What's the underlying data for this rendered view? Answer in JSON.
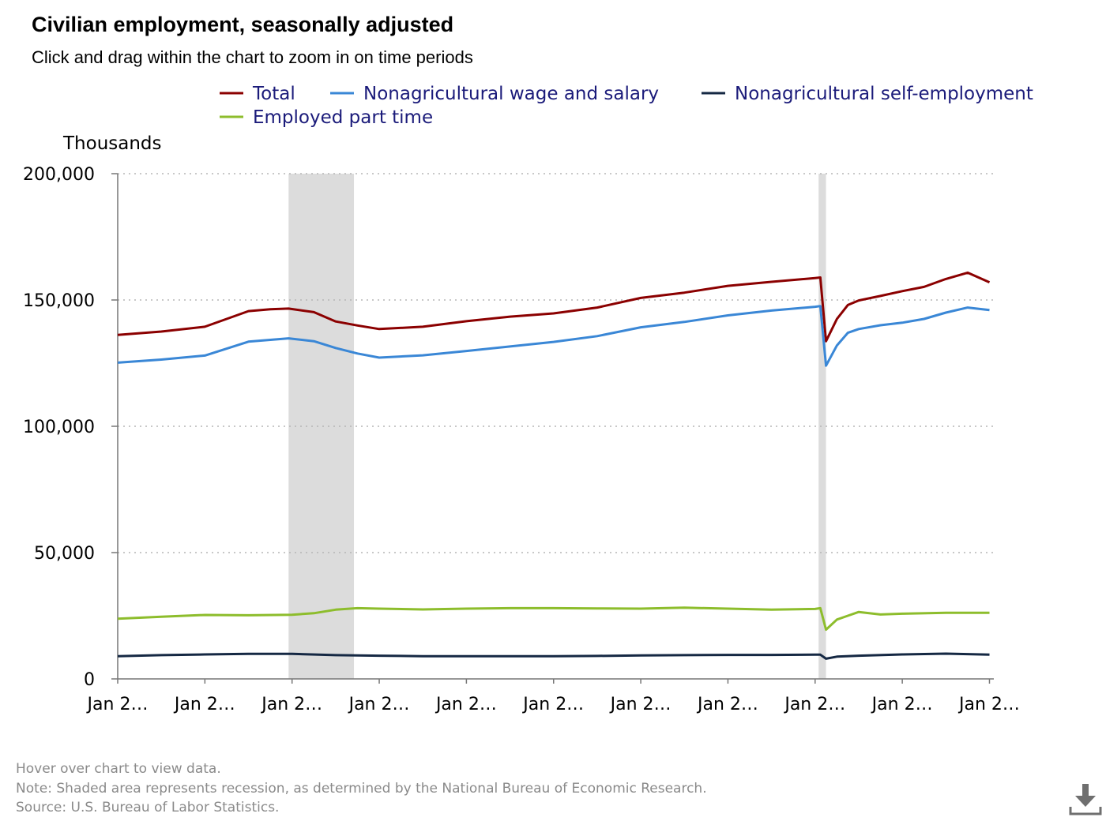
{
  "title": "Civilian employment, seasonally adjusted",
  "subtitle": "Click and drag within the chart to zoom in on time periods",
  "footer": {
    "hover_hint": "Hover over chart to view data.",
    "note": "Note: Shaded area represents recession, as determined by the National Bureau of Economic Research.",
    "source": "Source: U.S. Bureau of Labor Statistics."
  },
  "download_icon": "download-icon",
  "chart_data": {
    "type": "line",
    "ylabel": "Thousands",
    "ylim": [
      0,
      200000
    ],
    "yticks": [
      0,
      50000,
      100000,
      150000,
      200000
    ],
    "ytick_labels": [
      "0",
      "50,000",
      "100,000",
      "150,000",
      "200,000"
    ],
    "xlim": [
      2004.0,
      2024.1
    ],
    "xticks": [
      2004,
      2006,
      2008,
      2010,
      2012,
      2014,
      2016,
      2018,
      2020,
      2022,
      2024
    ],
    "xtick_labels": [
      "Jan 2…",
      "Jan 2…",
      "Jan 2…",
      "Jan 2…",
      "Jan 2…",
      "Jan 2…",
      "Jan 2…",
      "Jan 2…",
      "Jan 2…",
      "Jan 2…",
      "Jan 2…"
    ],
    "grid": "horizontal dotted",
    "legend_position": "top",
    "recessions": [
      {
        "start": 2007.92,
        "end": 2009.42
      },
      {
        "start": 2020.08,
        "end": 2020.25
      }
    ],
    "series": [
      {
        "name": "Total",
        "color": "#8b0000",
        "points": [
          [
            2004.0,
            136200
          ],
          [
            2005.0,
            137500
          ],
          [
            2006.0,
            139400
          ],
          [
            2007.0,
            145600
          ],
          [
            2007.5,
            146300
          ],
          [
            2007.92,
            146600
          ],
          [
            2008.5,
            145200
          ],
          [
            2009.0,
            141500
          ],
          [
            2009.5,
            139900
          ],
          [
            2010.0,
            138500
          ],
          [
            2011.0,
            139400
          ],
          [
            2012.0,
            141600
          ],
          [
            2013.0,
            143400
          ],
          [
            2014.0,
            144700
          ],
          [
            2015.0,
            147000
          ],
          [
            2016.0,
            150800
          ],
          [
            2017.0,
            152900
          ],
          [
            2018.0,
            155600
          ],
          [
            2019.0,
            157200
          ],
          [
            2020.0,
            158700
          ],
          [
            2020.12,
            158900
          ],
          [
            2020.25,
            133700
          ],
          [
            2020.5,
            142500
          ],
          [
            2020.75,
            148000
          ],
          [
            2021.0,
            149800
          ],
          [
            2021.5,
            151600
          ],
          [
            2022.0,
            153500
          ],
          [
            2022.5,
            155200
          ],
          [
            2023.0,
            158300
          ],
          [
            2023.5,
            160800
          ],
          [
            2024.0,
            157000
          ]
        ]
      },
      {
        "name": "Nonagricultural wage and salary",
        "color": "#3a87d6",
        "points": [
          [
            2004.0,
            125200
          ],
          [
            2005.0,
            126400
          ],
          [
            2006.0,
            128000
          ],
          [
            2007.0,
            133500
          ],
          [
            2007.92,
            134800
          ],
          [
            2008.5,
            133700
          ],
          [
            2009.0,
            131000
          ],
          [
            2009.5,
            128800
          ],
          [
            2010.0,
            127200
          ],
          [
            2011.0,
            128100
          ],
          [
            2012.0,
            129800
          ],
          [
            2013.0,
            131600
          ],
          [
            2014.0,
            133400
          ],
          [
            2015.0,
            135700
          ],
          [
            2016.0,
            139200
          ],
          [
            2017.0,
            141300
          ],
          [
            2018.0,
            143900
          ],
          [
            2019.0,
            145800
          ],
          [
            2020.0,
            147300
          ],
          [
            2020.12,
            147600
          ],
          [
            2020.25,
            124000
          ],
          [
            2020.5,
            132000
          ],
          [
            2020.75,
            137000
          ],
          [
            2021.0,
            138500
          ],
          [
            2021.5,
            140000
          ],
          [
            2022.0,
            141000
          ],
          [
            2022.5,
            142500
          ],
          [
            2023.0,
            145000
          ],
          [
            2023.5,
            147000
          ],
          [
            2024.0,
            146000
          ]
        ]
      },
      {
        "name": "Nonagricultural self-employment",
        "color": "#152843",
        "points": [
          [
            2004.0,
            9000
          ],
          [
            2005.0,
            9400
          ],
          [
            2006.0,
            9700
          ],
          [
            2007.0,
            9900
          ],
          [
            2008.0,
            9900
          ],
          [
            2009.0,
            9400
          ],
          [
            2010.0,
            9200
          ],
          [
            2011.0,
            9000
          ],
          [
            2012.0,
            9000
          ],
          [
            2013.0,
            9000
          ],
          [
            2014.0,
            9000
          ],
          [
            2015.0,
            9100
          ],
          [
            2016.0,
            9300
          ],
          [
            2017.0,
            9400
          ],
          [
            2018.0,
            9500
          ],
          [
            2019.0,
            9500
          ],
          [
            2020.0,
            9600
          ],
          [
            2020.12,
            9600
          ],
          [
            2020.25,
            8000
          ],
          [
            2020.5,
            8800
          ],
          [
            2021.0,
            9200
          ],
          [
            2022.0,
            9700
          ],
          [
            2023.0,
            10000
          ],
          [
            2024.0,
            9600
          ]
        ]
      },
      {
        "name": "Employed part time",
        "color": "#8dbd2c",
        "points": [
          [
            2004.0,
            23800
          ],
          [
            2005.0,
            24600
          ],
          [
            2006.0,
            25300
          ],
          [
            2007.0,
            25200
          ],
          [
            2008.0,
            25400
          ],
          [
            2008.5,
            26000
          ],
          [
            2009.0,
            27400
          ],
          [
            2009.5,
            28000
          ],
          [
            2010.0,
            27800
          ],
          [
            2011.0,
            27500
          ],
          [
            2012.0,
            27800
          ],
          [
            2013.0,
            28000
          ],
          [
            2014.0,
            28000
          ],
          [
            2015.0,
            27900
          ],
          [
            2016.0,
            27800
          ],
          [
            2017.0,
            28200
          ],
          [
            2018.0,
            27800
          ],
          [
            2019.0,
            27400
          ],
          [
            2020.0,
            27700
          ],
          [
            2020.12,
            28000
          ],
          [
            2020.25,
            19500
          ],
          [
            2020.5,
            23500
          ],
          [
            2020.75,
            25000
          ],
          [
            2021.0,
            26500
          ],
          [
            2021.5,
            25500
          ],
          [
            2022.0,
            25800
          ],
          [
            2023.0,
            26200
          ],
          [
            2024.0,
            26200
          ]
        ]
      }
    ]
  }
}
